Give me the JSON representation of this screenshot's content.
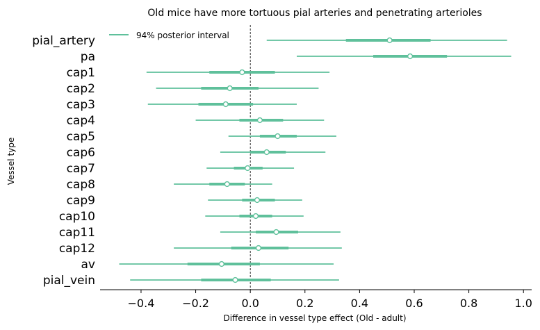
{
  "chart_data": {
    "type": "forest",
    "title": "Old mice have more tortuous pial arteries and penetrating arterioles",
    "xlabel": "Difference in vessel type effect (Old - adult)",
    "ylabel": "Vessel type",
    "xlim": [
      -0.55,
      1.03
    ],
    "xticks": [
      -0.4,
      -0.2,
      0.0,
      0.2,
      0.4,
      0.6,
      0.8,
      1.0
    ],
    "xtick_labels": [
      "−0.4",
      "−0.2",
      "0.0",
      "0.2",
      "0.4",
      "0.6",
      "0.8",
      "1.0"
    ],
    "reference_line": 0.0,
    "legend": {
      "label": "94% posterior interval",
      "position": "top-left"
    },
    "color": "#5fc09b",
    "series": [
      {
        "name": "pial_artery",
        "mean": 0.51,
        "hdi_94": [
          0.06,
          0.94
        ],
        "iqr": [
          0.35,
          0.66
        ]
      },
      {
        "name": "pa",
        "mean": 0.585,
        "hdi_94": [
          0.17,
          0.955
        ],
        "iqr": [
          0.45,
          0.72
        ]
      },
      {
        "name": "cap1",
        "mean": -0.03,
        "hdi_94": [
          -0.38,
          0.29
        ],
        "iqr": [
          -0.15,
          0.09
        ]
      },
      {
        "name": "cap2",
        "mean": -0.075,
        "hdi_94": [
          -0.345,
          0.25
        ],
        "iqr": [
          -0.18,
          0.03
        ]
      },
      {
        "name": "cap3",
        "mean": -0.09,
        "hdi_94": [
          -0.375,
          0.17
        ],
        "iqr": [
          -0.19,
          0.01
        ]
      },
      {
        "name": "cap4",
        "mean": 0.035,
        "hdi_94": [
          -0.2,
          0.27
        ],
        "iqr": [
          -0.04,
          0.12
        ]
      },
      {
        "name": "cap5",
        "mean": 0.1,
        "hdi_94": [
          -0.08,
          0.315
        ],
        "iqr": [
          0.035,
          0.17
        ]
      },
      {
        "name": "cap6",
        "mean": 0.06,
        "hdi_94": [
          -0.11,
          0.275
        ],
        "iqr": [
          0.0,
          0.13
        ]
      },
      {
        "name": "cap7",
        "mean": -0.01,
        "hdi_94": [
          -0.16,
          0.16
        ],
        "iqr": [
          -0.06,
          0.045
        ]
      },
      {
        "name": "cap8",
        "mean": -0.085,
        "hdi_94": [
          -0.28,
          0.08
        ],
        "iqr": [
          -0.15,
          -0.02
        ]
      },
      {
        "name": "cap9",
        "mean": 0.025,
        "hdi_94": [
          -0.155,
          0.19
        ],
        "iqr": [
          -0.03,
          0.09
        ]
      },
      {
        "name": "cap10",
        "mean": 0.02,
        "hdi_94": [
          -0.165,
          0.195
        ],
        "iqr": [
          -0.04,
          0.08
        ]
      },
      {
        "name": "cap11",
        "mean": 0.095,
        "hdi_94": [
          -0.11,
          0.33
        ],
        "iqr": [
          0.02,
          0.175
        ]
      },
      {
        "name": "cap12",
        "mean": 0.03,
        "hdi_94": [
          -0.28,
          0.335
        ],
        "iqr": [
          -0.07,
          0.14
        ]
      },
      {
        "name": "av",
        "mean": -0.105,
        "hdi_94": [
          -0.48,
          0.305
        ],
        "iqr": [
          -0.23,
          0.035
        ]
      },
      {
        "name": "pial_vein",
        "mean": -0.055,
        "hdi_94": [
          -0.44,
          0.325
        ],
        "iqr": [
          -0.18,
          0.075
        ]
      }
    ]
  }
}
